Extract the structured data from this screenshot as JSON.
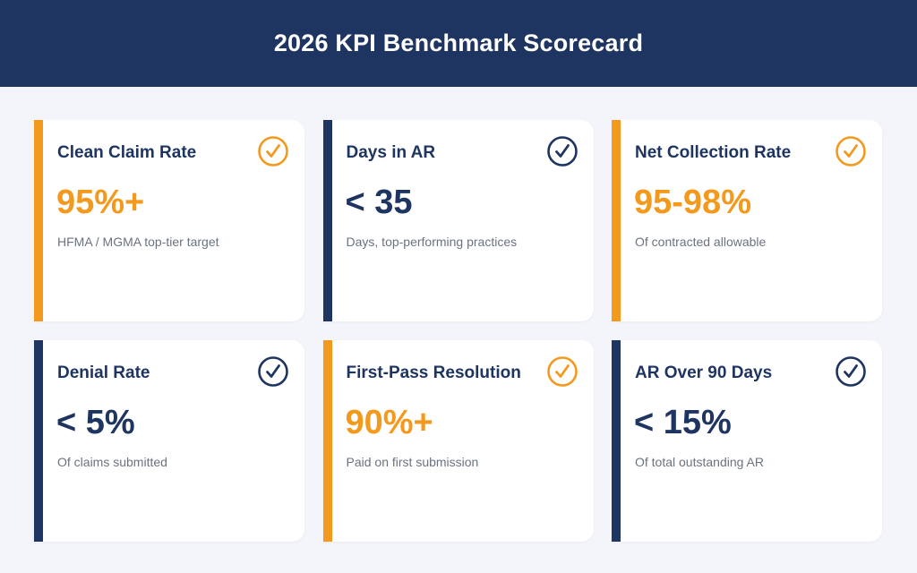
{
  "header": {
    "title": "2026 KPI Benchmark Scorecard"
  },
  "colors": {
    "navy": "#1e3461",
    "orange": "#f39a1e",
    "background": "#f4f5fa"
  },
  "cards": [
    {
      "title": "Clean Claim Rate",
      "value": "95%+",
      "description": "HFMA / MGMA top-tier target",
      "accent": "orange",
      "icon": "check-circle-icon"
    },
    {
      "title": "Days in AR",
      "value": "< 35",
      "description": "Days, top-performing practices",
      "accent": "navy",
      "icon": "check-circle-icon"
    },
    {
      "title": "Net Collection Rate",
      "value": "95-98%",
      "description": "Of contracted allowable",
      "accent": "orange",
      "icon": "check-circle-icon"
    },
    {
      "title": "Denial Rate",
      "value": "< 5%",
      "description": "Of claims submitted",
      "accent": "navy",
      "icon": "check-circle-icon"
    },
    {
      "title": "First-Pass Resolution",
      "value": "90%+",
      "description": "Paid on first submission",
      "accent": "orange",
      "icon": "check-circle-icon"
    },
    {
      "title": "AR Over 90 Days",
      "value": "< 15%",
      "description": "Of total outstanding AR",
      "accent": "navy",
      "icon": "check-circle-icon"
    }
  ]
}
